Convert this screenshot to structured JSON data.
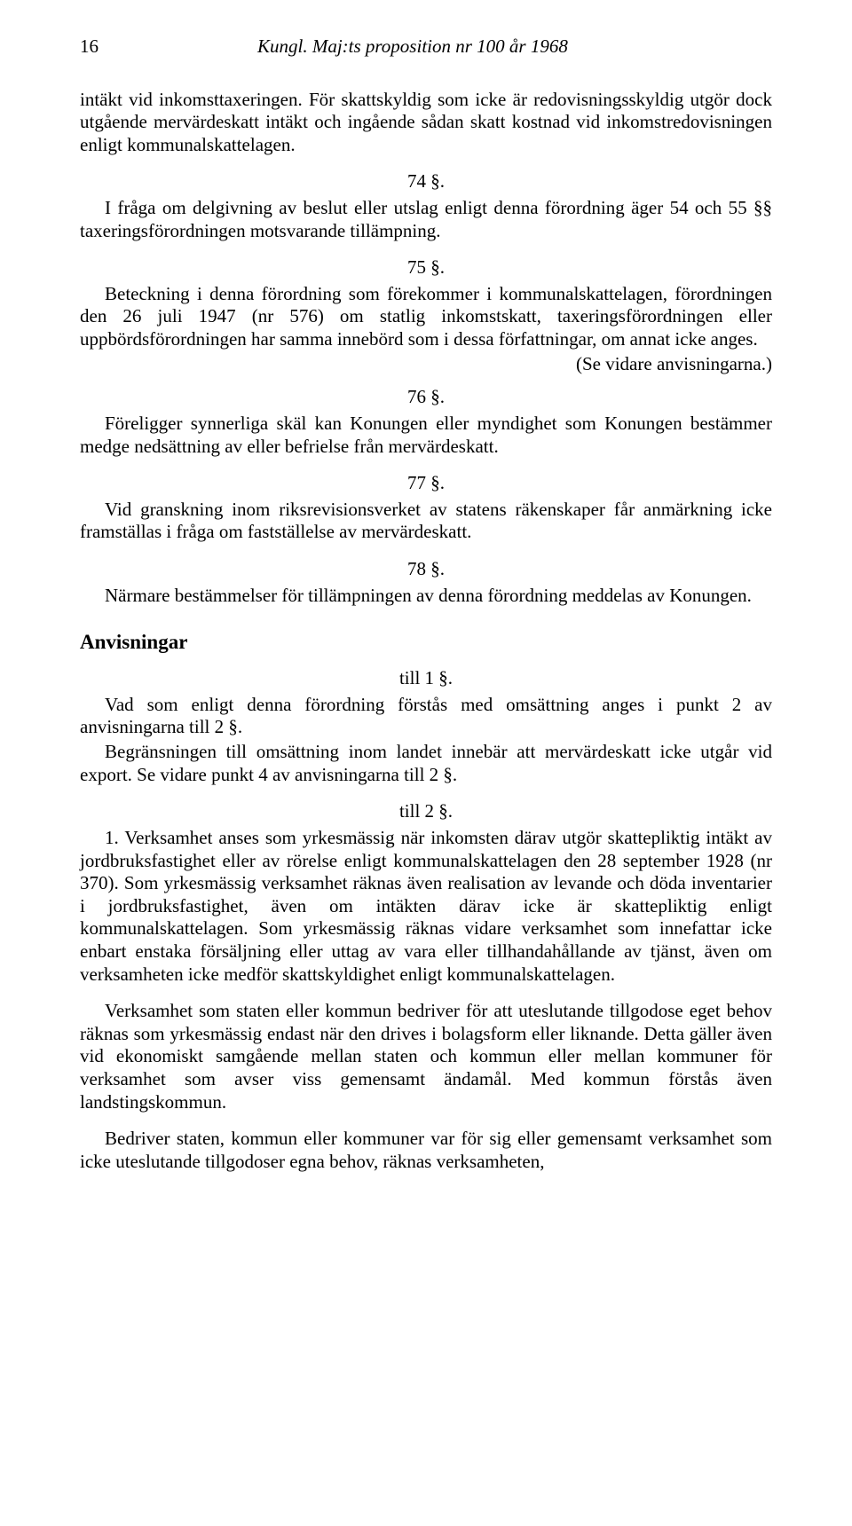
{
  "header": {
    "page_number": "16",
    "title": "Kungl. Maj:ts proposition nr 100 år 1968"
  },
  "p_intro": "intäkt vid inkomsttaxeringen. För skattskyldig som icke är redovisningsskyldig utgör dock utgående mervärdeskatt intäkt och ingående sådan skatt kostnad vid inkomstredovisningen enligt kommunalskattelagen.",
  "s74": {
    "num": "74 §.",
    "text": "I fråga om delgivning av beslut eller utslag enligt denna förordning äger 54 och 55 §§ taxeringsförordningen motsvarande tillämpning."
  },
  "s75": {
    "num": "75 §.",
    "text": "Beteckning i denna förordning som förekommer i kommunalskattelagen, förordningen den 26 juli 1947 (nr 576) om statlig inkomstskatt, taxeringsförordningen eller uppbördsförordningen har samma innebörd som i dessa författningar, om annat icke anges.",
    "note": "(Se vidare anvisningarna.)"
  },
  "s76": {
    "num": "76 §.",
    "text": "Föreligger synnerliga skäl kan Konungen eller myndighet som Konungen bestämmer medge nedsättning av eller befrielse från mervärdeskatt."
  },
  "s77": {
    "num": "77 §.",
    "text": "Vid granskning inom riksrevisionsverket av statens räkenskaper får anmärkning icke framställas i fråga om fastställelse av mervärdeskatt."
  },
  "s78": {
    "num": "78 §.",
    "text": "Närmare bestämmelser för tillämpningen av denna förordning meddelas av Konungen."
  },
  "anvisningar": {
    "heading": "Anvisningar",
    "till1": {
      "label": "till 1 §.",
      "p1": "Vad som enligt denna förordning förstås med omsättning anges i punkt 2 av anvisningarna till 2 §.",
      "p2": "Begränsningen till omsättning inom landet innebär att mervärdeskatt icke utgår vid export. Se vidare punkt 4 av anvisningarna till 2 §."
    },
    "till2": {
      "label": "till 2 §.",
      "p1": "1. Verksamhet anses som yrkesmässig när inkomsten därav utgör skattepliktig intäkt av jordbruksfastighet eller av rörelse enligt kommunalskattelagen den 28 september 1928 (nr 370). Som yrkesmässig verksamhet räknas även realisation av levande och döda inventarier i jordbruksfastighet, även om intäkten därav icke är skattepliktig enligt kommunalskattelagen. Som yrkesmässig räknas vidare verksamhet som innefattar icke enbart enstaka försäljning eller uttag av vara eller tillhandahållande av tjänst, även om verksamheten icke medför skattskyldighet enligt kommunalskattelagen.",
      "p2": "Verksamhet som staten eller kommun bedriver för att uteslutande tillgodose eget behov räknas som yrkesmässig endast när den drives i bolagsform eller liknande. Detta gäller även vid ekonomiskt samgående mellan staten och kommun eller mellan kommuner för verksamhet som avser viss gemensamt ändamål. Med kommun förstås även landstingskommun.",
      "p3": "Bedriver staten, kommun eller kommuner var för sig eller gemensamt verksamhet som icke uteslutande tillgodoser egna behov, räknas verksamheten,"
    }
  }
}
